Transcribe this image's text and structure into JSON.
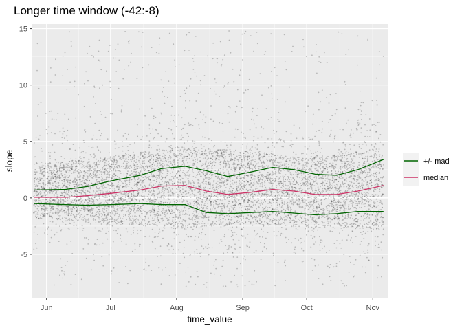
{
  "chart_data": {
    "type": "scatter",
    "title": "Longer time window (-42:-8)",
    "xlabel": "time_value",
    "ylabel": "slope",
    "x_range": [
      "2021-05-25",
      "2021-11-08"
    ],
    "ylim": [
      -8.9,
      15.4
    ],
    "x_ticks": [
      {
        "date": "2021-06-01",
        "label": "Jun"
      },
      {
        "date": "2021-07-01",
        "label": "Jul"
      },
      {
        "date": "2021-08-01",
        "label": "Aug"
      },
      {
        "date": "2021-09-01",
        "label": "Sep"
      },
      {
        "date": "2021-10-01",
        "label": "Oct"
      },
      {
        "date": "2021-11-01",
        "label": "Nov"
      }
    ],
    "y_ticks": [
      {
        "value": -5,
        "label": "-5"
      },
      {
        "value": 0,
        "label": "0"
      },
      {
        "value": 5,
        "label": "5"
      },
      {
        "value": 10,
        "label": "10"
      },
      {
        "value": 15,
        "label": "15"
      }
    ],
    "hline": 0,
    "grid": true,
    "background": "#ebebeb",
    "legend_position": "right",
    "points_color": "#000000",
    "scatter_density_profile": [
      {
        "x": "2021-05-26",
        "core_low": -1.8,
        "core_high": 3.0
      },
      {
        "x": "2021-07-01",
        "core_low": -2.2,
        "core_high": 3.6
      },
      {
        "x": "2021-08-01",
        "core_low": -2.8,
        "core_high": 4.6
      },
      {
        "x": "2021-09-01",
        "core_low": -2.4,
        "core_high": 4.2
      },
      {
        "x": "2021-10-01",
        "core_low": -2.6,
        "core_high": 3.6
      },
      {
        "x": "2021-11-06",
        "core_low": -2.8,
        "core_high": 4.4
      }
    ],
    "series": [
      {
        "name": "+/- mad",
        "color": "#006400",
        "points": [
          {
            "x": "2021-05-26",
            "y": 0.7
          },
          {
            "x": "2021-06-10",
            "y": 0.75
          },
          {
            "x": "2021-06-20",
            "y": 1.0
          },
          {
            "x": "2021-07-01",
            "y": 1.5
          },
          {
            "x": "2021-07-15",
            "y": 2.0
          },
          {
            "x": "2021-07-25",
            "y": 2.6
          },
          {
            "x": "2021-08-05",
            "y": 2.8
          },
          {
            "x": "2021-08-15",
            "y": 2.4
          },
          {
            "x": "2021-08-25",
            "y": 1.9
          },
          {
            "x": "2021-09-05",
            "y": 2.3
          },
          {
            "x": "2021-09-15",
            "y": 2.7
          },
          {
            "x": "2021-09-25",
            "y": 2.5
          },
          {
            "x": "2021-10-05",
            "y": 2.1
          },
          {
            "x": "2021-10-15",
            "y": 2.0
          },
          {
            "x": "2021-10-25",
            "y": 2.5
          },
          {
            "x": "2021-11-06",
            "y": 3.4
          }
        ],
        "lower_points": [
          {
            "x": "2021-05-26",
            "y": -0.5
          },
          {
            "x": "2021-06-10",
            "y": -0.6
          },
          {
            "x": "2021-06-20",
            "y": -0.65
          },
          {
            "x": "2021-07-01",
            "y": -0.6
          },
          {
            "x": "2021-07-15",
            "y": -0.5
          },
          {
            "x": "2021-07-25",
            "y": -0.6
          },
          {
            "x": "2021-08-05",
            "y": -0.6
          },
          {
            "x": "2021-08-15",
            "y": -1.3
          },
          {
            "x": "2021-08-25",
            "y": -1.4
          },
          {
            "x": "2021-09-05",
            "y": -1.3
          },
          {
            "x": "2021-09-15",
            "y": -1.2
          },
          {
            "x": "2021-09-25",
            "y": -1.35
          },
          {
            "x": "2021-10-05",
            "y": -1.5
          },
          {
            "x": "2021-10-15",
            "y": -1.4
          },
          {
            "x": "2021-10-25",
            "y": -1.2
          },
          {
            "x": "2021-11-06",
            "y": -1.2
          }
        ]
      },
      {
        "name": "median",
        "color": "#cc3366",
        "points": [
          {
            "x": "2021-05-26",
            "y": 0.05
          },
          {
            "x": "2021-06-10",
            "y": 0.05
          },
          {
            "x": "2021-06-20",
            "y": 0.2
          },
          {
            "x": "2021-07-01",
            "y": 0.4
          },
          {
            "x": "2021-07-15",
            "y": 0.7
          },
          {
            "x": "2021-07-25",
            "y": 1.05
          },
          {
            "x": "2021-08-05",
            "y": 1.1
          },
          {
            "x": "2021-08-15",
            "y": 0.6
          },
          {
            "x": "2021-08-25",
            "y": 0.3
          },
          {
            "x": "2021-09-05",
            "y": 0.5
          },
          {
            "x": "2021-09-15",
            "y": 0.75
          },
          {
            "x": "2021-09-25",
            "y": 0.6
          },
          {
            "x": "2021-10-05",
            "y": 0.3
          },
          {
            "x": "2021-10-15",
            "y": 0.3
          },
          {
            "x": "2021-10-25",
            "y": 0.6
          },
          {
            "x": "2021-11-06",
            "y": 1.1
          }
        ]
      }
    ]
  }
}
